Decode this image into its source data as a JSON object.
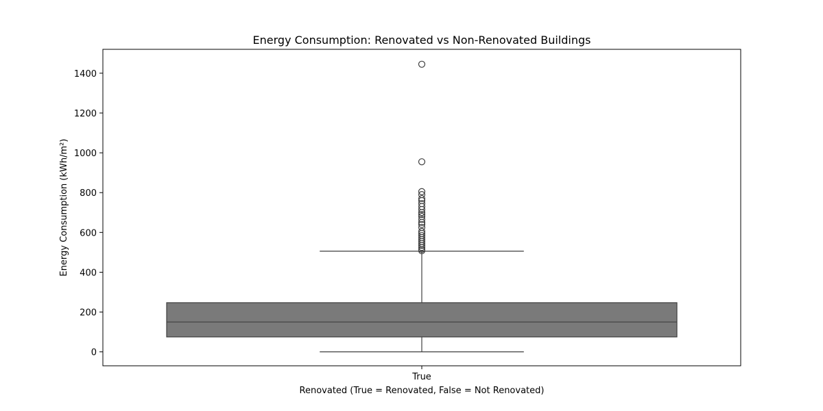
{
  "chart_data": {
    "type": "box",
    "title": "Energy Consumption: Renovated vs Non-Renovated Buildings",
    "xlabel": "Renovated (True = Renovated, False = Not Renovated)",
    "ylabel": "Energy Consumption (kWh/m²)",
    "ylim": [
      -70,
      1520
    ],
    "yticks": [
      0,
      200,
      400,
      600,
      800,
      1000,
      1200,
      1400
    ],
    "grid": false,
    "box_color": "#7a7a7a",
    "line_color": "#3f3f3f",
    "categories": [
      "True"
    ],
    "boxes": [
      {
        "category": "True",
        "whisker_low": 0,
        "q1": 75,
        "median": 150,
        "q3": 247,
        "whisker_high": 506,
        "outliers": [
          1445,
          955,
          805,
          790,
          770,
          760,
          745,
          730,
          715,
          700,
          690,
          680,
          665,
          650,
          640,
          625,
          605,
          595,
          585,
          575,
          565,
          555,
          545,
          535,
          525,
          515,
          508
        ]
      }
    ]
  }
}
